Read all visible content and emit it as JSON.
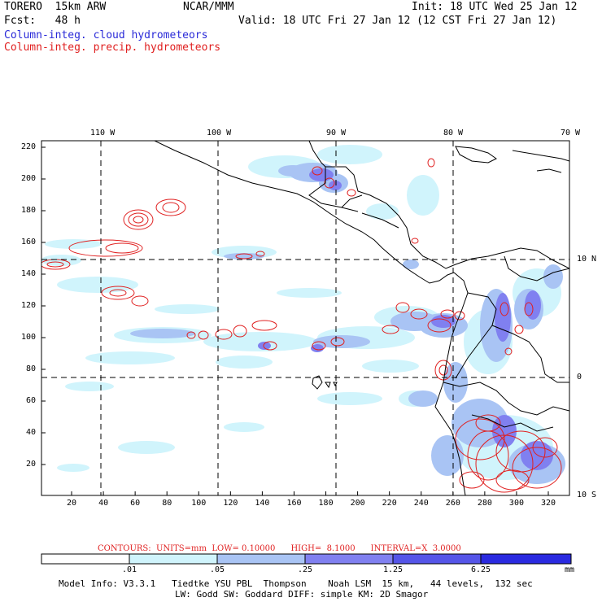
{
  "header": {
    "model_name": "TORERO  15km ARW",
    "org": "NCAR/MMM",
    "init": "Init: 18 UTC Wed 25 Jan 12",
    "fcst": "Fcst:   48 h",
    "valid": "Valid: 18 UTC Fri 27 Jan 12 (12 CST Fri 27 Jan 12)",
    "field1": "Column-integ. cloud hydrometeors",
    "field2": "Column-integ. precip. hydrometeors"
  },
  "colors": {
    "field1": "#2a2ad8",
    "field2": "#e02020",
    "shade_levels": [
      "#ffffff",
      "#d0f4fc",
      "#a9c4f4",
      "#8080f0",
      "#5555e8",
      "#2a2ae0"
    ],
    "contour": "#e02020"
  },
  "map": {
    "top_lon_labels": [
      "110 W",
      "100 W",
      "90 W",
      "80 W",
      "70 W"
    ],
    "right_lat_labels": [
      "10 N",
      "0",
      "10 S"
    ],
    "y_tick_labels": [
      "220",
      "200",
      "180",
      "160",
      "140",
      "120",
      "100",
      "80",
      "60",
      "40",
      "20"
    ],
    "x_tick_labels": [
      "20",
      "40",
      "60",
      "80",
      "100",
      "120",
      "140",
      "160",
      "180",
      "200",
      "220",
      "240",
      "260",
      "280",
      "300",
      "320"
    ],
    "grid_lines": "dashed"
  },
  "contours_info": "CONTOURS:  UNITS=mm  LOW= 0.10000      HIGH=  8.1000      INTERVAL=X  3.0000",
  "colorbar": {
    "labels": [
      ".01",
      ".05",
      ".25",
      "1.25",
      "6.25"
    ],
    "units": "mm"
  },
  "model_info": {
    "line1": "Model Info: V3.3.1   Tiedtke YSU PBL  Thompson    Noah LSM  15 km,   44 levels,  132 sec",
    "line2": "LW: Godd SW: Goddard DIFF: simple KM: 2D Smagor"
  }
}
